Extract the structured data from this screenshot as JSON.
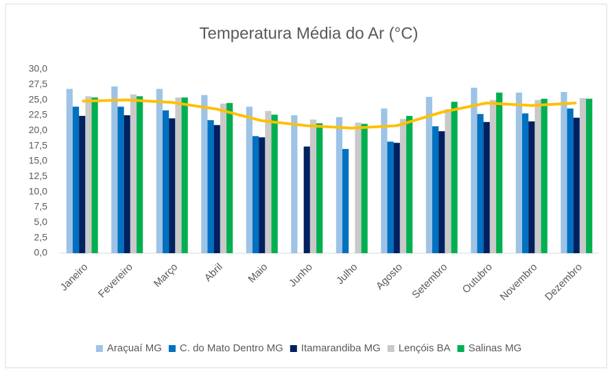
{
  "chart_data": {
    "type": "bar",
    "title": "Temperatura Média do Ar (°C)",
    "categories": [
      "Janeiro",
      "Fevereiro",
      "Março",
      "Abril",
      "Maio",
      "Junho",
      "Julho",
      "Agosto",
      "Setembro",
      "Outubro",
      "Novembro",
      "Dezembro"
    ],
    "series": [
      {
        "name": "Araçuaí MG",
        "color": "#9dc3e6",
        "values": [
          26.8,
          27.2,
          26.8,
          25.8,
          23.9,
          22.5,
          22.2,
          23.6,
          25.5,
          27.0,
          26.2,
          26.3
        ]
      },
      {
        "name": "C. do Mato Dentro MG",
        "color": "#0070c0",
        "values": [
          23.9,
          23.9,
          23.3,
          21.7,
          19.1,
          null,
          17.0,
          18.2,
          20.7,
          22.7,
          22.8,
          23.6
        ]
      },
      {
        "name": "Itamarandiba MG",
        "color": "#002060",
        "values": [
          22.4,
          22.5,
          22.0,
          20.9,
          18.9,
          17.4,
          null,
          18.0,
          19.9,
          21.4,
          21.5,
          22.1
        ]
      },
      {
        "name": "Lençóis BA",
        "color": "#c9c9c9",
        "values": [
          25.6,
          25.9,
          25.4,
          24.4,
          23.2,
          21.8,
          21.3,
          21.9,
          23.5,
          25.0,
          25.0,
          25.3
        ]
      },
      {
        "name": "Salinas MG",
        "color": "#00b050",
        "values": [
          25.4,
          25.6,
          25.4,
          24.5,
          22.6,
          21.2,
          21.1,
          22.4,
          24.7,
          26.2,
          25.2,
          25.2
        ]
      }
    ],
    "line": {
      "color": "#ffc000",
      "values": [
        24.8,
        25.0,
        24.6,
        23.5,
        21.6,
        20.8,
        20.4,
        20.8,
        23.0,
        24.5,
        24.1,
        24.5
      ]
    },
    "ylim": [
      0,
      30
    ],
    "yticks": [
      {
        "value": 0,
        "label": "0,0"
      },
      {
        "value": 2.5,
        "label": "2,5"
      },
      {
        "value": 5,
        "label": "5,0"
      },
      {
        "value": 7.5,
        "label": "7,5"
      },
      {
        "value": 10,
        "label": "10,0"
      },
      {
        "value": 12.5,
        "label": "12,5"
      },
      {
        "value": 15,
        "label": "15,0"
      },
      {
        "value": 17.5,
        "label": "17,5"
      },
      {
        "value": 20,
        "label": "20,0"
      },
      {
        "value": 22.5,
        "label": "22,5"
      },
      {
        "value": 25,
        "label": "25,0"
      },
      {
        "value": 27.5,
        "label": "27,5"
      },
      {
        "value": 30,
        "label": "30,0"
      }
    ],
    "grid": false,
    "legend": "bottom"
  }
}
